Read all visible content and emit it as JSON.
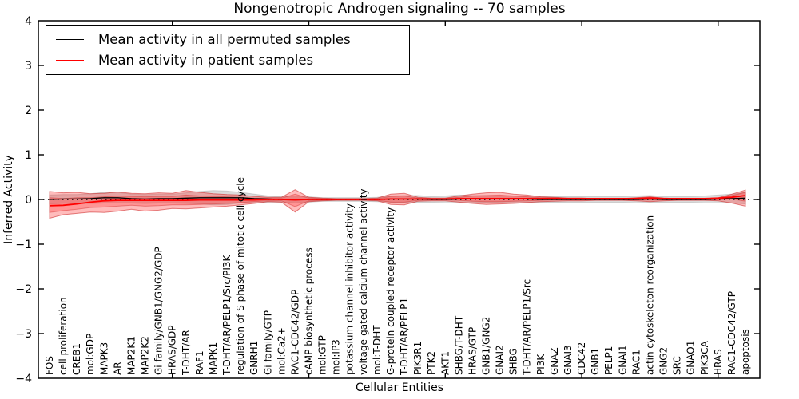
{
  "chart_data": {
    "type": "line",
    "title": "Nongenotropic Androgen signaling -- 70 samples",
    "xlabel": "Cellular Entities",
    "ylabel": "Inferred Activity",
    "ylim": [
      -4,
      4
    ],
    "yticks": [
      -4,
      -3,
      -2,
      -1,
      0,
      1,
      2,
      3,
      4
    ],
    "x_tick_indices": [
      9,
      19,
      29,
      39,
      49
    ],
    "grid": false,
    "zero_line": {
      "style": "dotted",
      "color": "#000000",
      "y": 0
    },
    "legend": {
      "position": "upper left",
      "entries": [
        {
          "label": "Mean activity in all permuted samples",
          "color": "#000000"
        },
        {
          "label": "Mean activity in patient samples",
          "color": "#ff0000"
        }
      ]
    },
    "categories": [
      "FOS",
      "cell proliferation",
      "CREB1",
      "mol:GDP",
      "MAPK3",
      "AR",
      "MAP2K1",
      "MAP2K2",
      "Gi family/GNB1/GNG2/GDP",
      "HRAS/GDP",
      "T-DHT/AR",
      "RAF1",
      "MAPK1",
      "T-DHT/AR/PELP1/Src/PI3K",
      "regulation of S phase of mitotic cell cycle",
      "GNRH1",
      "Gi family/GTP",
      "mol:Ca2+",
      "RAC1-CDC42/GDP",
      "cAMP biosynthetic process",
      "mol:GTP",
      "mol:IP3",
      "potassium channel inhibitor activity",
      "voltage-gated calcium channel activity",
      "mol:T-DHT",
      "G-protein coupled receptor activity",
      "T-DHT/AR/PELP1",
      "PIK3R1",
      "PTK2",
      "AKT1",
      "SHBG/T-DHT",
      "HRAS/GTP",
      "GNB1/GNG2",
      "GNAI2",
      "SHBG",
      "T-DHT/AR/PELP1/Src",
      "PI3K",
      "GNAZ",
      "GNAI3",
      "CDC42",
      "GNB1",
      "PELP1",
      "GNAI1",
      "RAC1",
      "actin cytoskeleton reorganization",
      "GNG2",
      "SRC",
      "GNAO1",
      "PIK3CA",
      "HRAS",
      "RAC1-CDC42/GTP",
      "apoptosis"
    ],
    "series": [
      {
        "name": "Mean activity in all permuted samples",
        "color": "#000000",
        "width": 1.3,
        "values": [
          0,
          0.01,
          0.01,
          0.02,
          0.04,
          0.04,
          0.02,
          0.01,
          0.02,
          0.02,
          0.03,
          0.04,
          0.04,
          0.04,
          0.04,
          0.02,
          0.01,
          0,
          0,
          0,
          0,
          0,
          0,
          0,
          0,
          0.01,
          0.01,
          0.01,
          0,
          0,
          0.01,
          0.01,
          0.01,
          0.01,
          0.01,
          0.01,
          0,
          0,
          0,
          0,
          0,
          0,
          0,
          0,
          0.01,
          0,
          0,
          0,
          0,
          0.01,
          0.02,
          0.03
        ]
      },
      {
        "name": "Mean activity in patient samples",
        "color": "#ff0000",
        "width": 1.8,
        "values": [
          -0.14,
          -0.13,
          -0.1,
          -0.06,
          -0.03,
          -0.02,
          -0.02,
          -0.02,
          -0.02,
          -0.02,
          -0.02,
          -0.01,
          -0.01,
          -0.01,
          -0.01,
          -0.01,
          0,
          0,
          -0.01,
          0,
          0,
          0,
          0,
          0,
          0,
          0.01,
          0.01,
          0.01,
          0.01,
          0.01,
          0.02,
          0.02,
          0.02,
          0.02,
          0.02,
          0.02,
          0.02,
          0.02,
          0.02,
          0.02,
          0.02,
          0.02,
          0.02,
          0.02,
          0.03,
          0.02,
          0.02,
          0.02,
          0.02,
          0.03,
          0.05,
          0.09
        ]
      }
    ],
    "bands": [
      {
        "name": "permuted-samples-band",
        "color": "#999999",
        "opacity": 0.35,
        "edge_color": "#aaaaaa",
        "edge_opacity": 0.5,
        "upper": [
          0.1,
          0.11,
          0.11,
          0.13,
          0.16,
          0.16,
          0.12,
          0.11,
          0.12,
          0.12,
          0.15,
          0.18,
          0.2,
          0.19,
          0.16,
          0.12,
          0.08,
          0.06,
          0.08,
          0.06,
          0.04,
          0.04,
          0.04,
          0.04,
          0.05,
          0.08,
          0.09,
          0.09,
          0.07,
          0.08,
          0.1,
          0.09,
          0.09,
          0.08,
          0.08,
          0.08,
          0.07,
          0.06,
          0.07,
          0.07,
          0.07,
          0.07,
          0.07,
          0.08,
          0.09,
          0.07,
          0.07,
          0.07,
          0.08,
          0.1,
          0.12,
          0.16
        ],
        "lower": [
          -0.1,
          -0.09,
          -0.09,
          -0.09,
          -0.08,
          -0.08,
          -0.08,
          -0.09,
          -0.08,
          -0.08,
          -0.09,
          -0.1,
          -0.12,
          -0.11,
          -0.08,
          -0.08,
          -0.06,
          -0.06,
          -0.08,
          -0.06,
          -0.04,
          -0.04,
          -0.04,
          -0.04,
          -0.05,
          -0.06,
          -0.07,
          -0.07,
          -0.07,
          -0.08,
          -0.08,
          -0.07,
          -0.07,
          -0.06,
          -0.06,
          -0.06,
          -0.07,
          -0.06,
          -0.07,
          -0.07,
          -0.07,
          -0.07,
          -0.07,
          -0.08,
          -0.07,
          -0.07,
          -0.07,
          -0.07,
          -0.08,
          -0.08,
          -0.08,
          -0.1
        ]
      },
      {
        "name": "patient-samples-outer-band",
        "color": "#ff2222",
        "opacity": 0.3,
        "edge_color": "#cc2020",
        "edge_opacity": 0.55,
        "upper": [
          0.18,
          0.15,
          0.16,
          0.13,
          0.14,
          0.17,
          0.14,
          0.13,
          0.15,
          0.14,
          0.2,
          0.16,
          0.13,
          0.11,
          0.1,
          0.07,
          0.05,
          0.05,
          0.22,
          0.05,
          0.03,
          0.02,
          0.02,
          0.02,
          0.03,
          0.12,
          0.14,
          0.05,
          0.03,
          0.03,
          0.08,
          0.12,
          0.15,
          0.16,
          0.12,
          0.1,
          0.06,
          0.05,
          0.03,
          0.03,
          0.02,
          0.02,
          0.02,
          0.04,
          0.06,
          0.03,
          0.02,
          0.02,
          0.02,
          0.04,
          0.12,
          0.21
        ],
        "lower": [
          -0.42,
          -0.34,
          -0.31,
          -0.28,
          -0.29,
          -0.26,
          -0.22,
          -0.26,
          -0.24,
          -0.2,
          -0.21,
          -0.19,
          -0.17,
          -0.15,
          -0.12,
          -0.09,
          -0.05,
          -0.06,
          -0.28,
          -0.05,
          -0.03,
          -0.02,
          -0.02,
          -0.02,
          -0.03,
          -0.11,
          -0.12,
          -0.04,
          -0.03,
          -0.03,
          -0.06,
          -0.09,
          -0.11,
          -0.1,
          -0.09,
          -0.07,
          -0.05,
          -0.04,
          -0.03,
          -0.03,
          -0.02,
          -0.02,
          -0.02,
          -0.03,
          -0.05,
          -0.03,
          -0.02,
          -0.02,
          -0.02,
          -0.03,
          -0.08,
          -0.15
        ]
      },
      {
        "name": "patient-samples-inner-band",
        "color": "#ff2222",
        "opacity": 0.26,
        "edge_color": "#cc2020",
        "edge_opacity": 0.4,
        "upper": [
          0.04,
          0.02,
          0.04,
          0.04,
          0.06,
          0.08,
          0.07,
          0.06,
          0.07,
          0.07,
          0.1,
          0.08,
          0.07,
          0.06,
          0.05,
          0.03,
          0.03,
          0.03,
          0.12,
          0.03,
          0.02,
          0.01,
          0.01,
          0.01,
          0.02,
          0.07,
          0.08,
          0.03,
          0.02,
          0.02,
          0.05,
          0.08,
          0.09,
          0.1,
          0.08,
          0.06,
          0.04,
          0.04,
          0.03,
          0.03,
          0.02,
          0.02,
          0.02,
          0.03,
          0.05,
          0.03,
          0.02,
          0.02,
          0.02,
          0.03,
          0.09,
          0.16
        ],
        "lower": [
          -0.29,
          -0.25,
          -0.22,
          -0.18,
          -0.17,
          -0.15,
          -0.13,
          -0.15,
          -0.14,
          -0.12,
          -0.12,
          -0.11,
          -0.1,
          -0.09,
          -0.07,
          -0.05,
          -0.03,
          -0.03,
          -0.16,
          -0.03,
          -0.02,
          -0.01,
          -0.01,
          -0.01,
          -0.02,
          -0.06,
          -0.06,
          -0.02,
          -0.01,
          -0.01,
          -0.02,
          -0.04,
          -0.05,
          -0.05,
          -0.04,
          -0.03,
          -0.02,
          -0.01,
          -0.01,
          -0.01,
          -0.01,
          -0.01,
          -0.01,
          -0.01,
          -0.01,
          -0.01,
          -0.01,
          -0.01,
          -0.01,
          -0.01,
          0.01,
          -0.04
        ]
      }
    ]
  }
}
